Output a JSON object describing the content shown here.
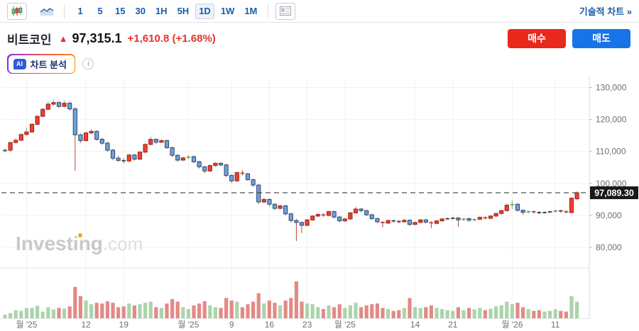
{
  "toolbar": {
    "chart_type_candles_icon": "candlestick-icon",
    "chart_type_area_icon": "area-chart-icon",
    "timeframes": [
      "1",
      "5",
      "15",
      "30",
      "1H",
      "5H",
      "1D",
      "1W",
      "1M"
    ],
    "active_timeframe": "1D",
    "panel_icon": "news-panel-icon",
    "technical_chart_link": "기술적 차트 »"
  },
  "header": {
    "instrument": "비트코인",
    "direction_arrow": "▲",
    "price": "97,315.1",
    "change": "+1,610.8 (+1.68%)",
    "buy_label": "매수",
    "sell_label": "매도"
  },
  "ai": {
    "badge": "AI",
    "label": "차트 분석",
    "info_icon": "i"
  },
  "watermark": {
    "brand": "Investing",
    "suffix": ".com"
  },
  "colors": {
    "up_body": "#ef3e33",
    "up_border": "#9c231b",
    "up_wick": "#6aa86a",
    "down_body": "#6fa0d8",
    "down_border": "#27496f",
    "down_wick": "#b5443a",
    "doji": "#444444",
    "vol_up": "#abd4ad",
    "vol_down": "#e38a86",
    "grid": "#f1f1f1",
    "axis_line": "#d8d8d8",
    "axis_text": "#707070",
    "last_price_line": "#3c3c3c",
    "badge_bg": "#17191c",
    "badge_text": "#ffffff",
    "accent_blue": "#1a5ca8",
    "buy_red": "#e8291c",
    "sell_blue": "#1873e8"
  },
  "chart_data": {
    "type": "candlestick+volume",
    "last_price_value": 97089.3,
    "last_price_label": "97,089.30",
    "ylim": [
      78000,
      133000
    ],
    "y_ticks": [
      {
        "label": "130,000",
        "value": 130000
      },
      {
        "label": "120,000",
        "value": 120000
      },
      {
        "label": "110,000",
        "value": 110000
      },
      {
        "label": "100,000",
        "value": 100000
      },
      {
        "label": "90,000",
        "value": 90000
      },
      {
        "label": "80,000",
        "value": 80000
      }
    ],
    "x_ticks": [
      {
        "label": "월 '25",
        "index": 4
      },
      {
        "label": "12",
        "index": 15
      },
      {
        "label": "19",
        "index": 22
      },
      {
        "label": "월 '25",
        "index": 34
      },
      {
        "label": "9",
        "index": 42
      },
      {
        "label": "16",
        "index": 49
      },
      {
        "label": "23",
        "index": 56
      },
      {
        "label": "월 '25",
        "index": 63
      },
      {
        "label": "14",
        "index": 76
      },
      {
        "label": "21",
        "index": 83
      },
      {
        "label": "월 '26",
        "index": 94
      },
      {
        "label": "11",
        "index": 102
      }
    ],
    "candles_format": [
      "open",
      "high",
      "low",
      "close",
      "volume_rel"
    ],
    "candles": [
      [
        110200,
        111000,
        109700,
        110400,
        10
      ],
      [
        110400,
        113100,
        109900,
        112800,
        14
      ],
      [
        112800,
        114200,
        112500,
        113500,
        22
      ],
      [
        113500,
        115800,
        113200,
        115300,
        20
      ],
      [
        115300,
        117400,
        115000,
        116100,
        28
      ],
      [
        116100,
        118900,
        115800,
        118500,
        28
      ],
      [
        118500,
        121400,
        118200,
        121000,
        34
      ],
      [
        121000,
        123600,
        120700,
        123200,
        18
      ],
      [
        123200,
        125600,
        122900,
        124800,
        30
      ],
      [
        124800,
        126200,
        124300,
        125300,
        24
      ],
      [
        125300,
        125800,
        123600,
        124100,
        28
      ],
      [
        124100,
        126000,
        123800,
        125100,
        26
      ],
      [
        125100,
        125500,
        122800,
        123300,
        32
      ],
      [
        123300,
        123800,
        104000,
        115200,
        85
      ],
      [
        115200,
        115600,
        112700,
        113400,
        60
      ],
      [
        113400,
        116200,
        113100,
        115800,
        48
      ],
      [
        115800,
        117000,
        115300,
        116300,
        38
      ],
      [
        116300,
        116600,
        113400,
        113800,
        42
      ],
      [
        113800,
        114300,
        112100,
        112600,
        40
      ],
      [
        112600,
        113000,
        109900,
        110400,
        46
      ],
      [
        110400,
        110800,
        107300,
        107900,
        42
      ],
      [
        107900,
        108600,
        106800,
        107200,
        30
      ],
      [
        107200,
        107900,
        106300,
        107000,
        32
      ],
      [
        107000,
        109300,
        106700,
        108900,
        40
      ],
      [
        108900,
        109200,
        107100,
        107600,
        35
      ],
      [
        107600,
        110200,
        107300,
        109800,
        38
      ],
      [
        109800,
        112600,
        109500,
        112200,
        42
      ],
      [
        112200,
        114600,
        111900,
        113800,
        45
      ],
      [
        113800,
        114100,
        112400,
        112900,
        30
      ],
      [
        112900,
        113900,
        112600,
        113400,
        28
      ],
      [
        113400,
        113700,
        110800,
        111200,
        40
      ],
      [
        111200,
        111500,
        108300,
        108800,
        52
      ],
      [
        108800,
        109100,
        106800,
        107300,
        45
      ],
      [
        107300,
        108400,
        107000,
        108000,
        30
      ],
      [
        108000,
        108900,
        107600,
        108400,
        25
      ],
      [
        108400,
        108700,
        106300,
        106800,
        35
      ],
      [
        106800,
        107100,
        104700,
        105200,
        40
      ],
      [
        105200,
        105500,
        103300,
        103900,
        46
      ],
      [
        103900,
        105900,
        103600,
        105600,
        35
      ],
      [
        105600,
        106700,
        105200,
        106300,
        30
      ],
      [
        106300,
        106600,
        105300,
        105800,
        28
      ],
      [
        105800,
        106100,
        102000,
        102500,
        55
      ],
      [
        102500,
        102800,
        100200,
        100800,
        48
      ],
      [
        100800,
        103700,
        100500,
        103400,
        45
      ],
      [
        103400,
        104100,
        102500,
        103000,
        30
      ],
      [
        103000,
        103300,
        100800,
        101200,
        38
      ],
      [
        101200,
        101500,
        99000,
        99500,
        45
      ],
      [
        99500,
        99800,
        93600,
        94200,
        68
      ],
      [
        94200,
        95600,
        93800,
        95000,
        40
      ],
      [
        95000,
        95300,
        93000,
        93500,
        48
      ],
      [
        93500,
        93800,
        91700,
        92200,
        42
      ],
      [
        92200,
        93400,
        91900,
        93000,
        35
      ],
      [
        93000,
        93300,
        90000,
        90500,
        48
      ],
      [
        90500,
        90800,
        87900,
        88400,
        55
      ],
      [
        88400,
        88900,
        82000,
        87800,
        100
      ],
      [
        87800,
        88100,
        84500,
        86900,
        45
      ],
      [
        86900,
        88900,
        86600,
        88600,
        40
      ],
      [
        88600,
        90100,
        88300,
        89800,
        38
      ],
      [
        89800,
        90700,
        89500,
        90300,
        30
      ],
      [
        90300,
        90700,
        89500,
        90000,
        25
      ],
      [
        90000,
        91500,
        89700,
        91200,
        35
      ],
      [
        91200,
        91500,
        89100,
        89500,
        30
      ],
      [
        89500,
        89800,
        87900,
        88300,
        38
      ],
      [
        88300,
        89200,
        88000,
        88900,
        28
      ],
      [
        88900,
        91100,
        88600,
        90800,
        35
      ],
      [
        90800,
        92800,
        90500,
        92000,
        42
      ],
      [
        92000,
        92300,
        91000,
        91500,
        30
      ],
      [
        91500,
        91800,
        89800,
        90200,
        35
      ],
      [
        90200,
        90500,
        88600,
        89000,
        38
      ],
      [
        89000,
        89300,
        87600,
        88000,
        40
      ],
      [
        88000,
        88300,
        86300,
        87600,
        28
      ],
      [
        87600,
        88700,
        87300,
        88400,
        25
      ],
      [
        88400,
        88700,
        87800,
        88200,
        20
      ],
      [
        88200,
        88500,
        87500,
        88000,
        22
      ],
      [
        88000,
        88900,
        87700,
        88500,
        28
      ],
      [
        88500,
        88800,
        86700,
        87200,
        55
      ],
      [
        87200,
        88100,
        86900,
        87800,
        30
      ],
      [
        87800,
        88900,
        87500,
        88600,
        28
      ],
      [
        88600,
        88900,
        87500,
        87900,
        30
      ],
      [
        87900,
        88200,
        86000,
        87500,
        35
      ],
      [
        87500,
        88600,
        87200,
        88300,
        28
      ],
      [
        88300,
        89200,
        88000,
        88900,
        25
      ],
      [
        88900,
        89400,
        88500,
        89000,
        22
      ],
      [
        89000,
        89600,
        88700,
        89200,
        20
      ],
      [
        89200,
        89500,
        86500,
        88600,
        30
      ],
      [
        88600,
        89300,
        88200,
        89000,
        22
      ],
      [
        89000,
        89300,
        88000,
        88500,
        28
      ],
      [
        88500,
        89100,
        88200,
        88800,
        24
      ],
      [
        88800,
        89700,
        88500,
        89400,
        28
      ],
      [
        89400,
        89700,
        88700,
        89100,
        22
      ],
      [
        89100,
        90100,
        88800,
        89800,
        26
      ],
      [
        89800,
        90900,
        89500,
        90600,
        32
      ],
      [
        90600,
        91800,
        90300,
        91500,
        35
      ],
      [
        91500,
        93800,
        91200,
        93200,
        45
      ],
      [
        93200,
        94500,
        92000,
        93500,
        38
      ],
      [
        93500,
        93800,
        91200,
        91600,
        42
      ],
      [
        91600,
        91900,
        90200,
        91000,
        30
      ],
      [
        91000,
        91600,
        90700,
        91300,
        25
      ],
      [
        91300,
        91500,
        90600,
        91000,
        20
      ],
      [
        91000,
        91300,
        90400,
        90800,
        22
      ],
      [
        90800,
        91300,
        90500,
        91000,
        18
      ],
      [
        91000,
        91500,
        90700,
        91200,
        20
      ],
      [
        91200,
        91800,
        90900,
        91500,
        24
      ],
      [
        91500,
        91800,
        90800,
        91300,
        20
      ],
      [
        91300,
        91600,
        90600,
        91000,
        18
      ],
      [
        90900,
        95700,
        90600,
        95400,
        60
      ],
      [
        95200,
        97600,
        94800,
        97100,
        45
      ]
    ]
  }
}
